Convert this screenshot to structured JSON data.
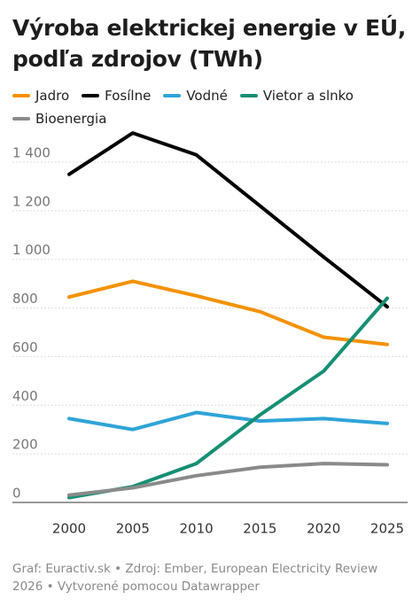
{
  "chart_data": {
    "type": "line",
    "title": "Výroba elektrickej energie v EÚ, podľa zdrojov (TWh)",
    "x": [
      2000,
      2005,
      2010,
      2015,
      2020,
      2025
    ],
    "xlim": [
      2000,
      2025
    ],
    "xticks": [
      2000,
      2005,
      2010,
      2015,
      2020,
      2025
    ],
    "ylim": [
      0,
      1400
    ],
    "yticks": [
      0,
      200,
      400,
      600,
      800,
      {
        "value": 1000,
        "label": "1 000"
      },
      {
        "value": 1200,
        "label": "1 200"
      },
      {
        "value": 1400,
        "label": "1 400"
      }
    ],
    "grid": true,
    "series": [
      {
        "name": "Jadro",
        "color": "#f39200",
        "values": [
          845,
          910,
          850,
          785,
          680,
          650
        ]
      },
      {
        "name": "Fosílne",
        "color": "#000000",
        "values": [
          1350,
          1520,
          1430,
          1220,
          1010,
          805
        ]
      },
      {
        "name": "Vodné",
        "color": "#2fa4d8",
        "values": [
          345,
          300,
          370,
          335,
          345,
          325
        ]
      },
      {
        "name": "Vietor a slnko",
        "color": "#168f73",
        "values": [
          20,
          65,
          160,
          360,
          540,
          840
        ]
      },
      {
        "name": "Bioenergia",
        "color": "#8a8a8a",
        "values": [
          30,
          60,
          110,
          145,
          160,
          155
        ]
      }
    ],
    "source": [
      "Graf: Euractiv.sk • Zdroj: Ember, European Electricity Review",
      "2026 • Vytvorené pomocou Datawrapper"
    ]
  }
}
